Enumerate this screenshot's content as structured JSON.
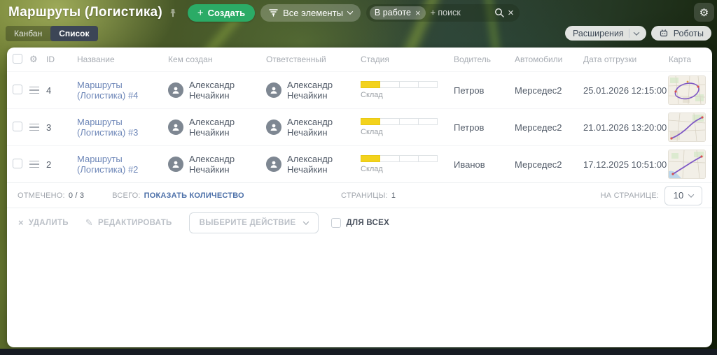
{
  "icons": {
    "plus": "+",
    "close": "×",
    "gear": "⚙",
    "pencil": "✎",
    "delete": "×"
  },
  "colors": {
    "accent_green": "#2bab66",
    "stage_yellow": "#f3d21c",
    "link_blue": "#6e87b8",
    "action_blue": "#4b6fa8",
    "tab_active_bg": "#3c4556"
  },
  "header": {
    "title": "Маршруты (Логистика)",
    "create_label": "Создать",
    "elements_dropdown": "Все элементы",
    "search_chip": "В работе",
    "search_placeholder": "+ поиск"
  },
  "tabs": {
    "kanban": "Канбан",
    "list": "Список"
  },
  "toolbar": {
    "extensions": "Расширения",
    "robots": "Роботы"
  },
  "table": {
    "headers": {
      "id": "ID",
      "name": "Название",
      "creator": "Кем создан",
      "responsible": "Ответственный",
      "stage": "Стадия",
      "driver": "Водитель",
      "cars": "Автомобили",
      "ship_date": "Дата отгрузки",
      "map": "Карта"
    },
    "rows": [
      {
        "id": "4",
        "name": "Маршруты (Логистика) #4",
        "creator": "Александр Нечайкин",
        "responsible": "Александр Нечайкин",
        "stage": "Склад",
        "stage_filled": 1,
        "stage_total": 4,
        "driver": "Петров",
        "car": "Мерседес2",
        "date": "25.01.2026 12:15:00"
      },
      {
        "id": "3",
        "name": "Маршруты (Логистика) #3",
        "creator": "Александр Нечайкин",
        "responsible": "Александр Нечайкин",
        "stage": "Склад",
        "stage_filled": 1,
        "stage_total": 4,
        "driver": "Петров",
        "car": "Мерседес2",
        "date": "21.01.2026 13:20:00"
      },
      {
        "id": "2",
        "name": "Маршруты (Логистика) #2",
        "creator": "Александр Нечайкин",
        "responsible": "Александр Нечайкин",
        "stage": "Склад",
        "stage_filled": 1,
        "stage_total": 4,
        "driver": "Иванов",
        "car": "Мерседес2",
        "date": "17.12.2025 10:51:00"
      }
    ]
  },
  "footer": {
    "checked_label": "ОТМЕЧЕНО:",
    "checked_value": "0 / 3",
    "total_label": "ВСЕГО:",
    "total_link": "ПОКАЗАТЬ КОЛИЧЕСТВО",
    "pages_label": "СТРАНИЦЫ:",
    "pages_value": "1",
    "per_page_label": "НА СТРАНИЦЕ:",
    "per_page_value": "10"
  },
  "actions": {
    "delete": "УДАЛИТЬ",
    "edit": "РЕДАКТИРОВАТЬ",
    "choose_action": "ВЫБЕРИТЕ ДЕЙСТВИЕ",
    "for_all": "ДЛЯ ВСЕХ"
  }
}
